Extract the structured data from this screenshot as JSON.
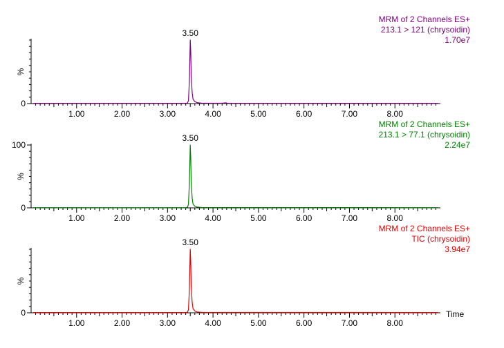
{
  "chart_data": {
    "type": "line",
    "x_tick_labels": [
      "1.00",
      "2.00",
      "3.00",
      "4.00",
      "5.00",
      "6.00",
      "7.00",
      "8.00"
    ],
    "x_ticks": [
      1,
      2,
      3,
      4,
      5,
      6,
      7,
      8
    ],
    "xlim": [
      0.0,
      9.0
    ],
    "xlabel": "Time",
    "grid": false,
    "panels": [
      {
        "title": "MRM of 2 Channels ES+",
        "subtitle": "213.1 > 121 (chrysoidin)",
        "intensity": "1.70e7",
        "color": "#800080",
        "ylabel": "%",
        "ylim": [
          0,
          100
        ],
        "y_tick_labels": [
          "0"
        ],
        "y_ticks": [
          0
        ],
        "peak_label": "3.50",
        "peak_x": 3.5,
        "series": {
          "x": [
            0.05,
            3.4,
            3.44,
            3.46,
            3.48,
            3.49,
            3.5,
            3.51,
            3.52,
            3.54,
            3.56,
            3.6,
            3.65,
            3.75,
            4.2,
            4.28,
            4.32,
            4.4,
            8.95
          ],
          "y": [
            0.4,
            0.4,
            1.0,
            5.0,
            35.0,
            70.0,
            100.0,
            82.0,
            45.0,
            18.0,
            7.0,
            3.0,
            1.5,
            0.8,
            0.5,
            1.2,
            0.5,
            0.4,
            0.4
          ]
        }
      },
      {
        "title": "MRM of 2 Channels ES+",
        "subtitle": "213.1 > 77.1 (chrysoidin)",
        "intensity": "2.24e7",
        "color": "#008000",
        "ylabel": "%",
        "ylim": [
          0,
          100
        ],
        "y_tick_labels": [
          "0",
          "100"
        ],
        "y_ticks": [
          0,
          100
        ],
        "peak_label": "3.50",
        "peak_x": 3.5,
        "series": {
          "x": [
            0.05,
            3.4,
            3.44,
            3.46,
            3.48,
            3.49,
            3.5,
            3.51,
            3.52,
            3.54,
            3.56,
            3.6,
            3.65,
            3.75,
            8.95
          ],
          "y": [
            0.3,
            0.3,
            1.0,
            6.0,
            38.0,
            72.0,
            100.0,
            80.0,
            42.0,
            16.0,
            6.0,
            2.5,
            1.2,
            0.5,
            0.3
          ]
        }
      },
      {
        "title": "MRM of 2 Channels ES+",
        "subtitle": "TIC (chrysoidin)",
        "intensity": "3.94e7",
        "color": "#e00000",
        "ylabel": "%",
        "ylim": [
          0,
          100
        ],
        "y_tick_labels": [
          "0"
        ],
        "y_ticks": [
          0
        ],
        "peak_label": "3.50",
        "peak_x": 3.5,
        "series": {
          "x": [
            0.05,
            3.4,
            3.44,
            3.46,
            3.48,
            3.49,
            3.5,
            3.51,
            3.52,
            3.54,
            3.56,
            3.6,
            3.65,
            3.75,
            8.95
          ],
          "y": [
            0.4,
            0.4,
            1.0,
            5.0,
            36.0,
            71.0,
            100.0,
            81.0,
            44.0,
            17.0,
            6.5,
            2.8,
            1.3,
            0.6,
            0.4
          ]
        }
      }
    ]
  }
}
